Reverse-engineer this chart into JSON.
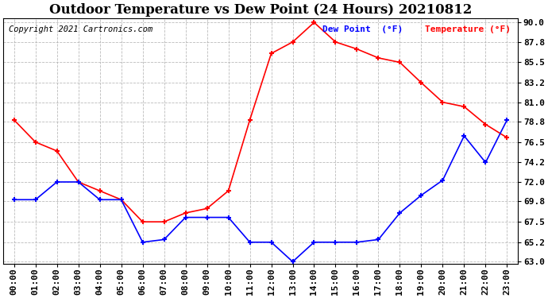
{
  "title": "Outdoor Temperature vs Dew Point (24 Hours) 20210812",
  "copyright": "Copyright 2021 Cartronics.com",
  "legend_dew": "Dew Point  (°F)",
  "legend_temp": "Temperature (°F)",
  "hours": [
    "00:00",
    "01:00",
    "02:00",
    "03:00",
    "04:00",
    "05:00",
    "06:00",
    "07:00",
    "08:00",
    "09:00",
    "10:00",
    "11:00",
    "12:00",
    "13:00",
    "14:00",
    "15:00",
    "16:00",
    "17:00",
    "18:00",
    "19:00",
    "20:00",
    "21:00",
    "22:00",
    "23:00"
  ],
  "temperature": [
    79.0,
    76.5,
    75.5,
    72.0,
    71.0,
    70.0,
    67.5,
    67.5,
    68.5,
    69.0,
    71.0,
    79.0,
    86.5,
    87.8,
    90.0,
    87.8,
    87.0,
    86.0,
    85.5,
    83.2,
    81.0,
    80.5,
    78.5,
    77.0
  ],
  "dew_point": [
    70.0,
    70.0,
    72.0,
    72.0,
    70.0,
    70.0,
    65.2,
    65.5,
    68.0,
    68.0,
    68.0,
    65.2,
    65.2,
    63.0,
    65.2,
    65.2,
    65.2,
    65.5,
    68.5,
    70.5,
    72.2,
    77.2,
    74.2,
    79.0
  ],
  "ylim_min": 63.0,
  "ylim_max": 90.0,
  "yticks": [
    63.0,
    65.2,
    67.5,
    69.8,
    72.0,
    74.2,
    76.5,
    78.8,
    81.0,
    83.2,
    85.5,
    87.8,
    90.0
  ],
  "temp_color": "red",
  "dew_color": "blue",
  "background_color": "#ffffff",
  "grid_color": "#aaaaaa",
  "title_fontsize": 12,
  "axis_fontsize": 8,
  "copyright_fontsize": 7.5
}
